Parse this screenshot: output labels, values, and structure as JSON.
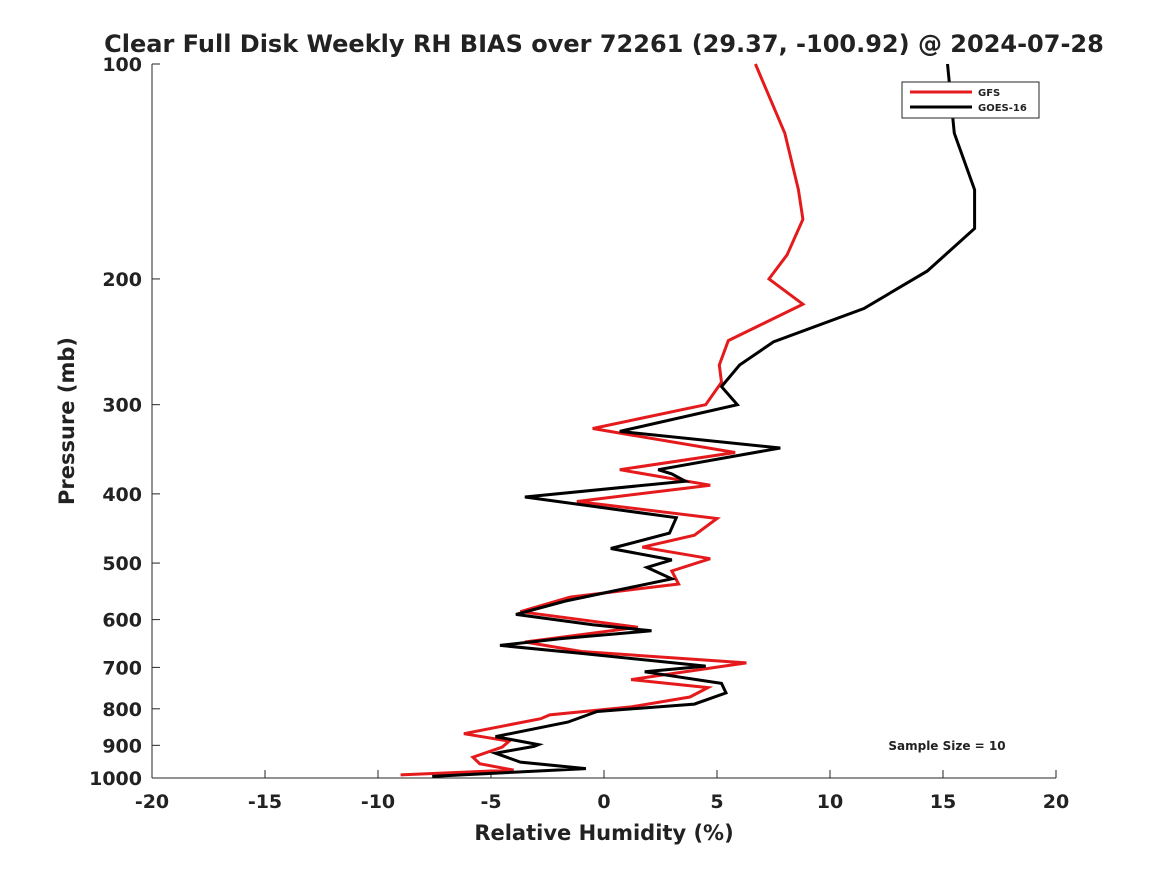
{
  "chart_data": {
    "type": "line",
    "title": "Clear Full Disk Weekly RH BIAS over 72261 (29.37, -100.92) @ 2024-07-28",
    "xlabel": "Relative Humidity (%)",
    "ylabel": "Pressure (mb)",
    "xlim": [
      -20,
      20
    ],
    "ylim": [
      100,
      1000
    ],
    "y_scale": "log",
    "y_reversed": true,
    "grid": false,
    "legend_position": "top-right",
    "x_ticks": [
      -20,
      -15,
      -10,
      -5,
      0,
      5,
      10,
      15,
      20
    ],
    "x_tick_labels": [
      "-20",
      "-15",
      "-10",
      "-5",
      "0",
      "5",
      "10",
      "15",
      "20"
    ],
    "y_ticks": [
      100,
      200,
      300,
      400,
      500,
      600,
      700,
      800,
      900,
      1000
    ],
    "y_tick_labels": [
      "100",
      "200",
      "300",
      "400",
      "500",
      "600",
      "700",
      "800",
      "900",
      "1000"
    ],
    "annotation": "Sample Size = 10",
    "series": [
      {
        "name": "GFS",
        "color": "#e41a1c",
        "points": [
          [
            6.7,
            100
          ],
          [
            8.0,
            125
          ],
          [
            8.6,
            150
          ],
          [
            8.8,
            165
          ],
          [
            8.1,
            185
          ],
          [
            7.3,
            200
          ],
          [
            8.8,
            217
          ],
          [
            5.5,
            244
          ],
          [
            5.1,
            264
          ],
          [
            5.2,
            279
          ],
          [
            4.5,
            300
          ],
          [
            -0.5,
            324
          ],
          [
            5.8,
            350
          ],
          [
            0.7,
            370
          ],
          [
            4.7,
            389
          ],
          [
            -1.2,
            410
          ],
          [
            5.0,
            433
          ],
          [
            4.0,
            457
          ],
          [
            1.7,
            475
          ],
          [
            4.7,
            493
          ],
          [
            3.0,
            513
          ],
          [
            3.3,
            535
          ],
          [
            -1.5,
            558
          ],
          [
            -3.7,
            585
          ],
          [
            1.5,
            615
          ],
          [
            -3.5,
            645
          ],
          [
            -1.0,
            665
          ],
          [
            6.3,
            690
          ],
          [
            1.2,
            728
          ],
          [
            4.6,
            747
          ],
          [
            3.8,
            770
          ],
          [
            1.2,
            795
          ],
          [
            -2.4,
            816
          ],
          [
            -2.8,
            826
          ],
          [
            -6.2,
            867
          ],
          [
            -4.2,
            888
          ],
          [
            -4.5,
            905
          ],
          [
            -5.8,
            935
          ],
          [
            -5.5,
            955
          ],
          [
            -4.0,
            975
          ],
          [
            -9.0,
            990
          ]
        ]
      },
      {
        "name": "GOES-16",
        "color": "#000000",
        "points": [
          [
            15.2,
            100
          ],
          [
            15.5,
            125
          ],
          [
            16.4,
            150
          ],
          [
            16.4,
            170
          ],
          [
            14.3,
            195
          ],
          [
            11.5,
            220
          ],
          [
            7.5,
            245
          ],
          [
            6.0,
            264
          ],
          [
            5.2,
            283
          ],
          [
            5.9,
            300
          ],
          [
            0.7,
            327
          ],
          [
            7.8,
            345
          ],
          [
            2.4,
            370
          ],
          [
            3.0,
            375
          ],
          [
            3.6,
            384
          ],
          [
            -3.5,
            404
          ],
          [
            3.2,
            432
          ],
          [
            2.9,
            454
          ],
          [
            0.3,
            477
          ],
          [
            3.0,
            495
          ],
          [
            1.9,
            507
          ],
          [
            3.0,
            526
          ],
          [
            -1.7,
            565
          ],
          [
            -3.9,
            590
          ],
          [
            -0.5,
            610
          ],
          [
            2.1,
            622
          ],
          [
            -1.9,
            638
          ],
          [
            -4.6,
            652
          ],
          [
            -1.0,
            669
          ],
          [
            4.5,
            697
          ],
          [
            1.8,
            710
          ],
          [
            5.2,
            737
          ],
          [
            5.4,
            760
          ],
          [
            4.0,
            788
          ],
          [
            -0.3,
            807
          ],
          [
            -1.6,
            835
          ],
          [
            -4.8,
            875
          ],
          [
            -2.9,
            898
          ],
          [
            -3.1,
            903
          ],
          [
            -4.8,
            923
          ],
          [
            -3.7,
            950
          ],
          [
            -0.8,
            970
          ],
          [
            -7.6,
            995
          ]
        ]
      }
    ]
  }
}
